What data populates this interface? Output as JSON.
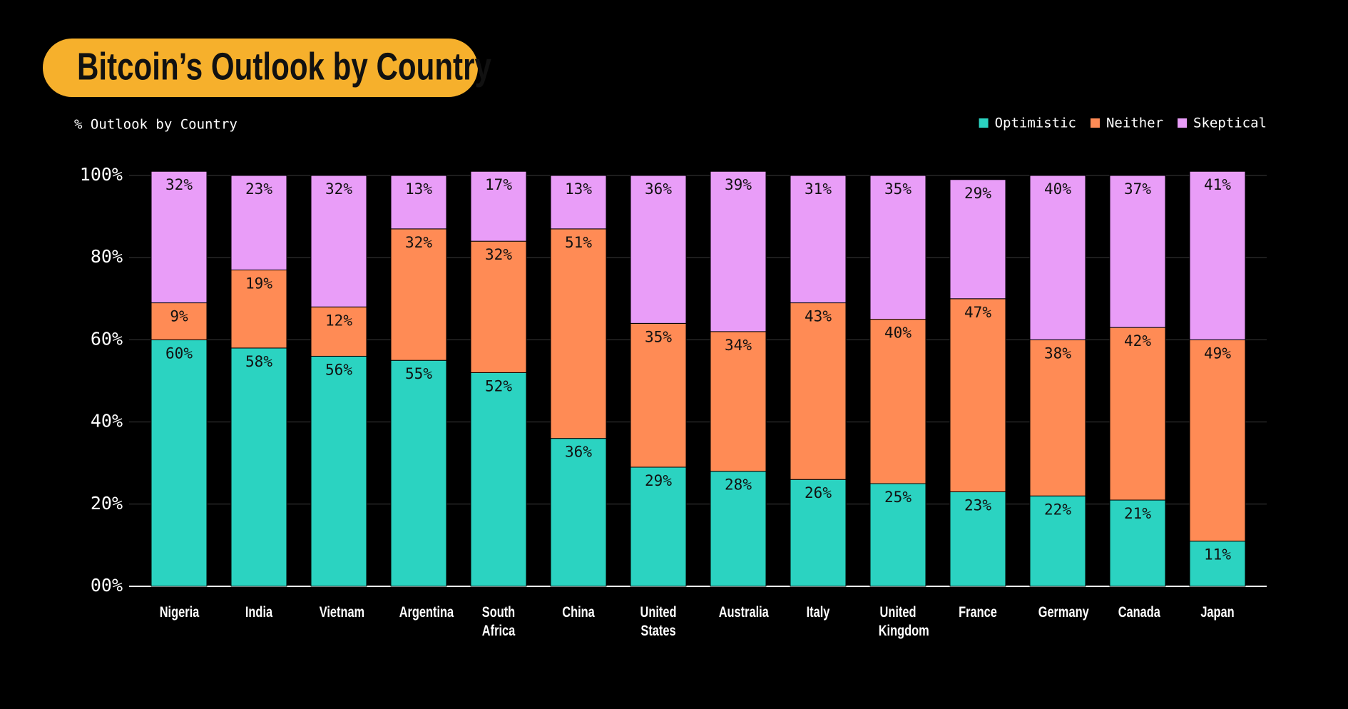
{
  "chart_data": {
    "type": "stacked-bar",
    "title": "Bitcoin’s Outlook by Country",
    "subtitle": "% Outlook by Country",
    "categories": [
      "Nigeria",
      "India",
      "Vietnam",
      "Argentina",
      "South Africa",
      "China",
      "United States",
      "Australia",
      "Italy",
      "United Kingdom",
      "France",
      "Germany",
      "Canada",
      "Japan"
    ],
    "series": [
      {
        "name": "Optimistic",
        "color": "#2bd3c1",
        "values": [
          60,
          58,
          56,
          55,
          52,
          36,
          29,
          28,
          26,
          25,
          23,
          22,
          21,
          11
        ],
        "value_labels": [
          "60%",
          "58%",
          "56%",
          "55%",
          "52%",
          "36%",
          "29%",
          "28%",
          "26%",
          "25%",
          "23%",
          "22%",
          "21%",
          "11%"
        ]
      },
      {
        "name": "Neither",
        "color": "#ff8b55",
        "values": [
          9,
          19,
          12,
          32,
          32,
          51,
          35,
          34,
          43,
          40,
          47,
          38,
          42,
          49
        ],
        "value_labels": [
          "9%",
          "19%",
          "12%",
          "32%",
          "32%",
          "51%",
          "35%",
          "34%",
          "43%",
          "40%",
          "47%",
          "38%",
          "42%",
          "49%"
        ]
      },
      {
        "name": "Skeptical",
        "color": "#e99df8",
        "values": [
          32,
          23,
          32,
          13,
          17,
          13,
          36,
          39,
          31,
          35,
          29,
          40,
          37,
          41
        ],
        "value_labels": [
          "32%",
          "23%",
          "32%",
          "13%",
          "17%",
          "13%",
          "36%",
          "39%",
          "31%",
          "35%",
          "29%",
          "40%",
          "37%",
          "41%"
        ]
      }
    ],
    "ylim": [
      0,
      100
    ],
    "yticks": [
      {
        "value": 0,
        "label": "00%"
      },
      {
        "value": 20,
        "label": "20%"
      },
      {
        "value": 40,
        "label": "40%"
      },
      {
        "value": 60,
        "label": "60%"
      },
      {
        "value": 80,
        "label": "80%"
      },
      {
        "value": 100,
        "label": "100%"
      }
    ],
    "grid": true,
    "legend": "top-right"
  }
}
